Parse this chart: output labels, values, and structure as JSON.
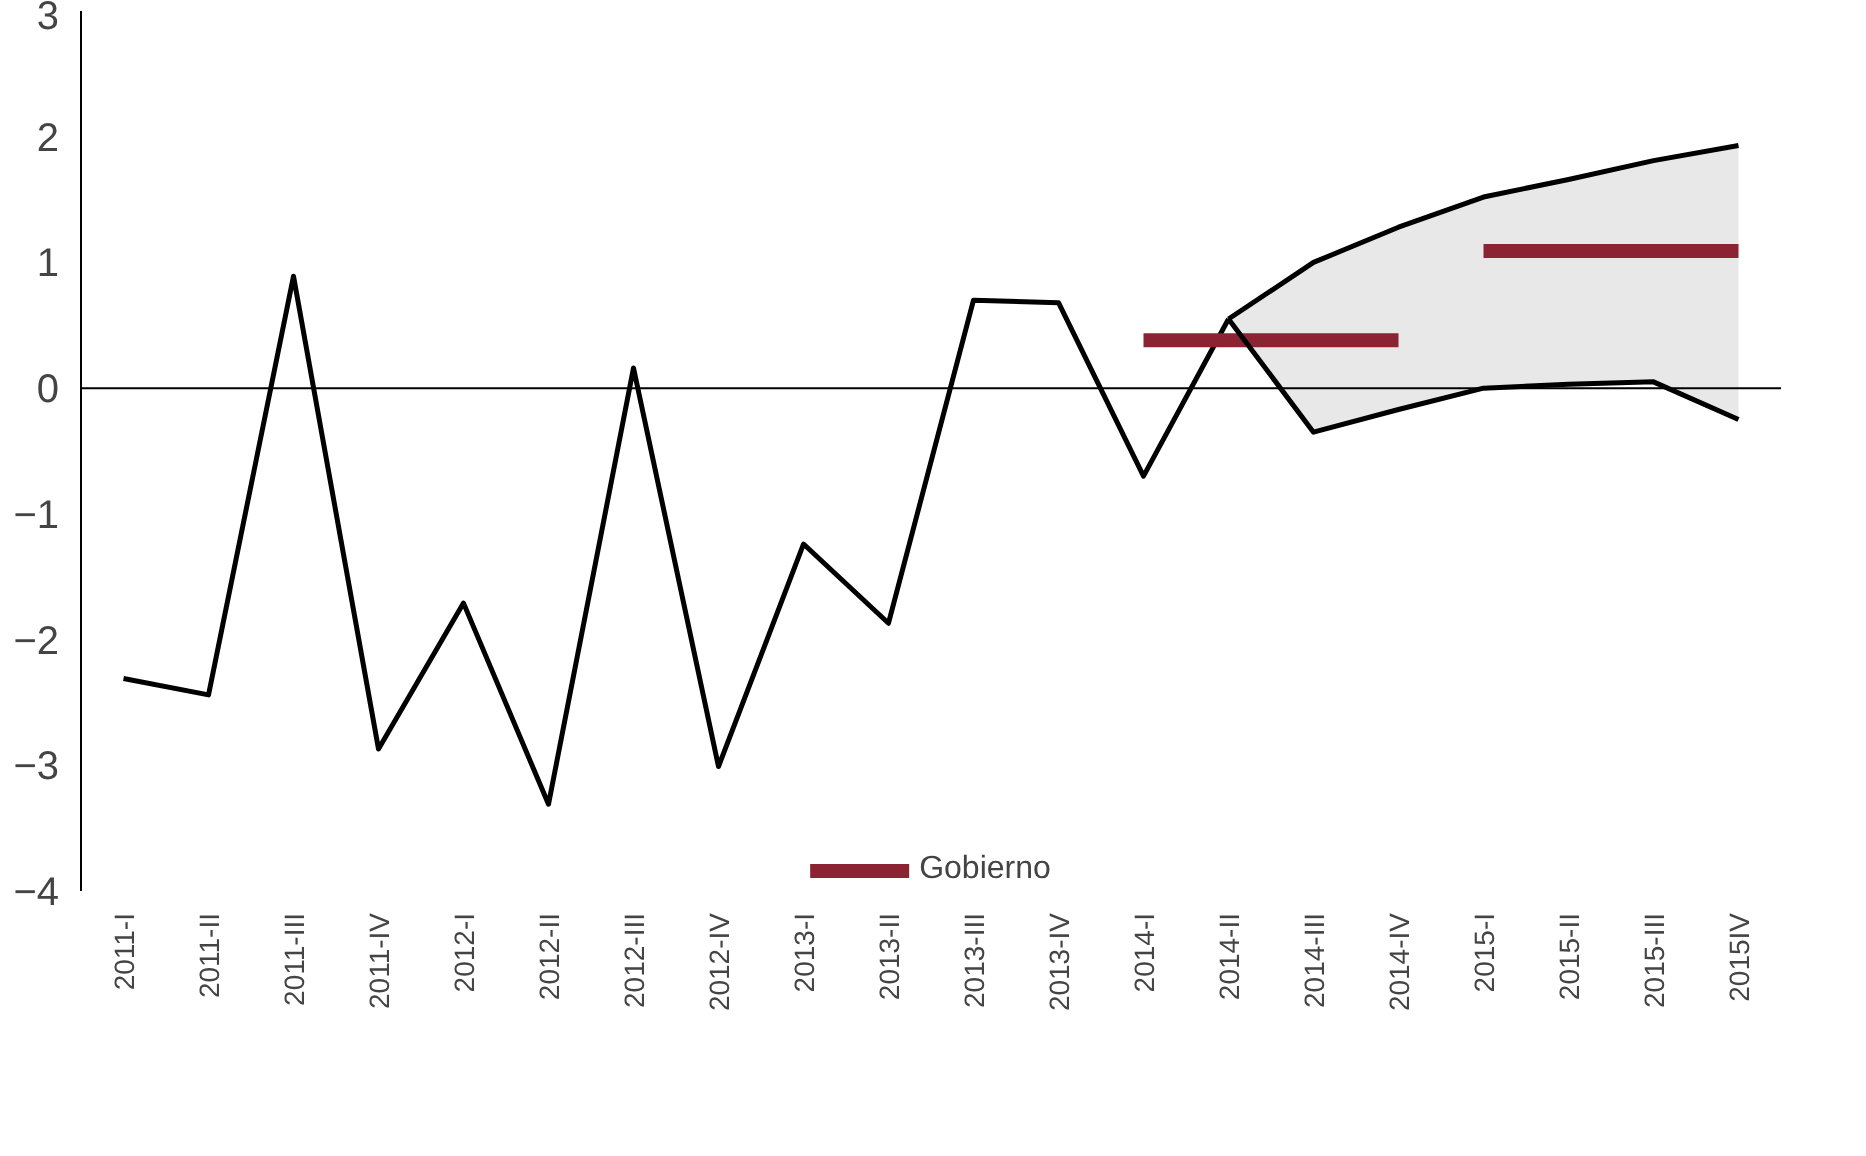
{
  "chart_data": {
    "type": "line",
    "categories": [
      "2011-I",
      "2011-II",
      "2011-III",
      "2011-IV",
      "2012-I",
      "2012-II",
      "2012-III",
      "2012-IV",
      "2013-I",
      "2013-II",
      "2013-III",
      "2013-IV",
      "2014-I",
      "2014-II",
      "2014-III",
      "2014-IV",
      "2015-I",
      "2015-II",
      "2015-III",
      "2015IV"
    ],
    "series": [
      {
        "color": "#000000",
        "values": [
          -2.31,
          -2.44,
          0.89,
          -2.87,
          -1.71,
          -3.31,
          0.16,
          -3.01,
          -1.24,
          -1.87,
          0.7,
          0.68,
          -0.7,
          0.55,
          null,
          null,
          null,
          null,
          null,
          null
        ],
        "lower": [
          null,
          null,
          null,
          null,
          null,
          null,
          null,
          null,
          null,
          null,
          null,
          null,
          null,
          0.55,
          -0.35,
          -0.17,
          0.0,
          0.03,
          0.05,
          -0.25
        ],
        "upper": [
          null,
          null,
          null,
          null,
          null,
          null,
          null,
          null,
          null,
          null,
          null,
          null,
          null,
          0.55,
          1.0,
          1.28,
          1.52,
          1.66,
          1.81,
          1.93
        ]
      },
      {
        "name": "Gobierno",
        "color": "#8b2332",
        "values": [
          null,
          null,
          null,
          null,
          null,
          null,
          null,
          null,
          null,
          null,
          null,
          null,
          0.38,
          0.38,
          0.38,
          0.38,
          null,
          null,
          null,
          null
        ]
      },
      {
        "color": "#8b2332",
        "values": [
          null,
          null,
          null,
          null,
          null,
          null,
          null,
          null,
          null,
          null,
          null,
          null,
          null,
          null,
          null,
          null,
          1.09,
          1.09,
          1.09,
          1.09
        ]
      },
      {
        "color": "#000000",
        "values": [
          null,
          null,
          null,
          null,
          null,
          null,
          null,
          null,
          null,
          null,
          null,
          null,
          null,
          0.55,
          1.0,
          1.28,
          1.52,
          1.66,
          1.81,
          1.93
        ]
      },
      {
        "color": "#000000",
        "values": [
          null,
          null,
          null,
          null,
          null,
          null,
          null,
          null,
          null,
          null,
          null,
          null,
          null,
          0.55,
          -0.35,
          -0.17,
          0.0,
          0.03,
          0.05,
          -0.25
        ]
      }
    ],
    "ylim": [
      -4,
      3
    ],
    "yticks": [
      -4,
      -3,
      -2,
      -1,
      0,
      1,
      2,
      3
    ],
    "ref_lines": [
      {
        "axis": "y",
        "value": 0,
        "color": "#000000"
      }
    ],
    "grid": false,
    "legend": "bottom"
  }
}
